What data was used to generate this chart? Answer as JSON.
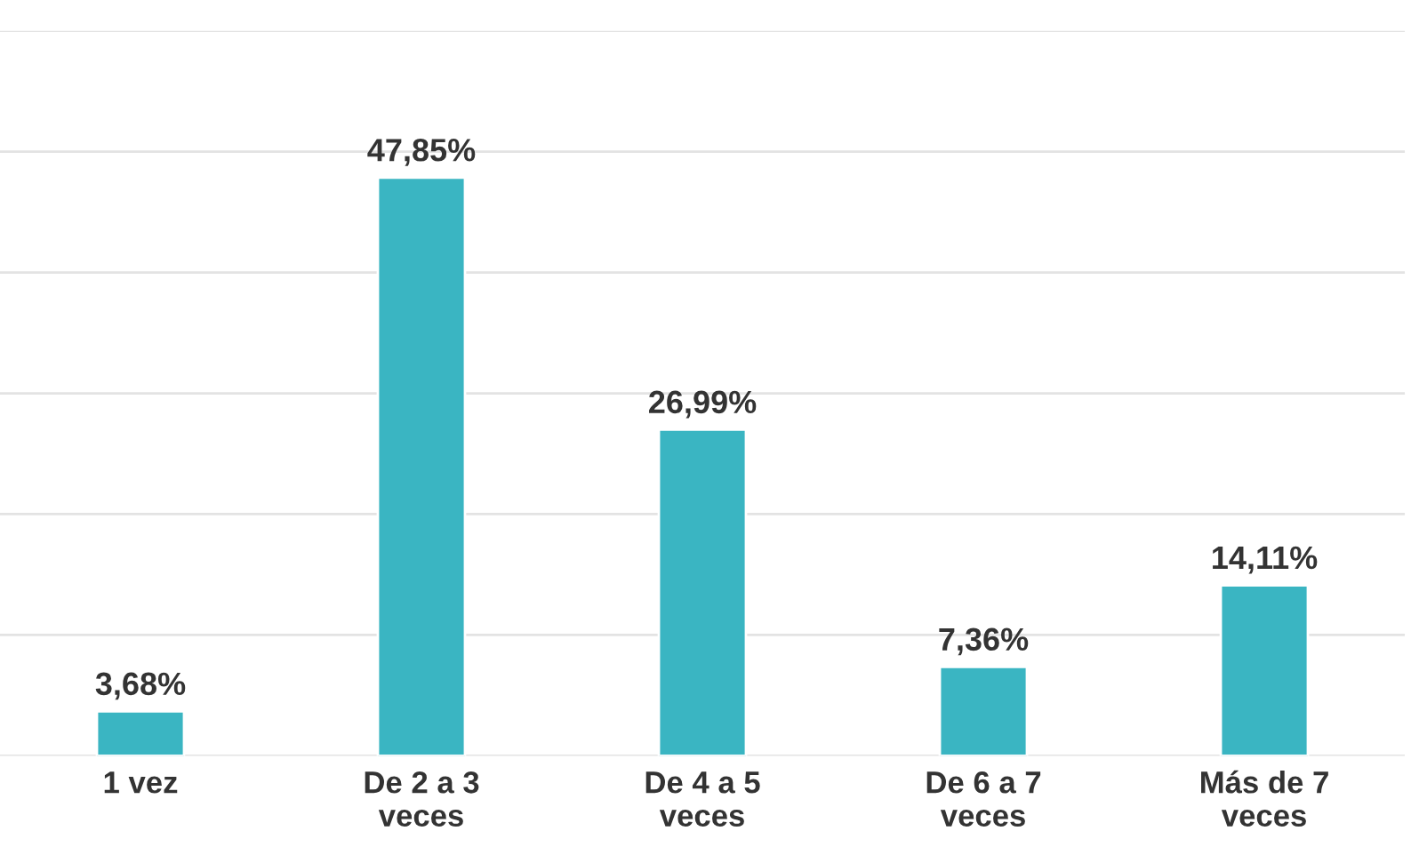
{
  "chart_data": {
    "type": "bar",
    "categories": [
      "1 vez",
      "De 2 a 3\nveces",
      "De 4 a 5\nveces",
      "De 6 a 7\nveces",
      "Más de 7\nveces"
    ],
    "values": [
      3.68,
      47.85,
      26.99,
      7.36,
      14.11
    ],
    "value_labels": [
      "3,68%",
      "47,85%",
      "26,99%",
      "7,36%",
      "14,11%"
    ],
    "color": "#3ab5c2",
    "ylim": [
      0,
      60
    ],
    "yticks": [
      {
        "value": 0,
        "label": null
      },
      {
        "value": 10,
        "label": null
      },
      {
        "value": 20,
        "label": null
      },
      {
        "value": 30,
        "label": null
      },
      {
        "value": 40,
        "label": null
      },
      {
        "value": 50,
        "label": null
      },
      {
        "value": 60,
        "label": null
      }
    ],
    "grid": "y",
    "tick_labels": "x"
  }
}
